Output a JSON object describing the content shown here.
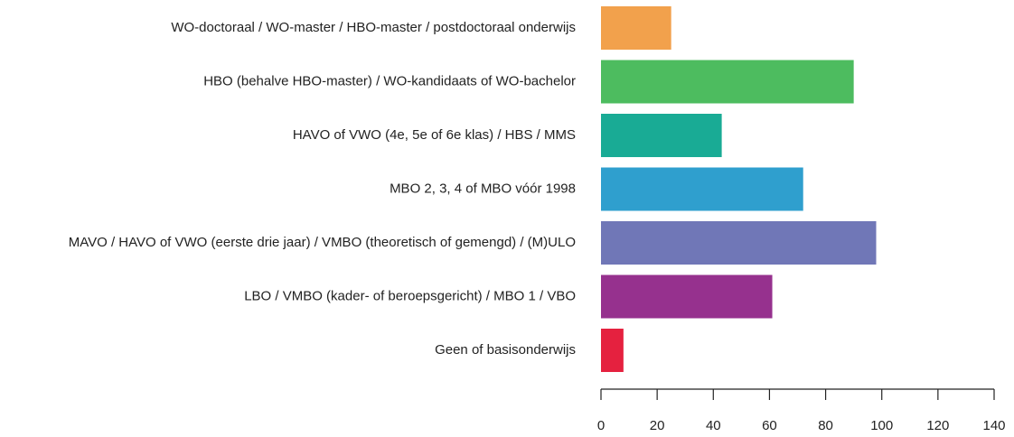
{
  "chart_data": {
    "type": "barh",
    "categories": [
      "WO-doctoraal / WO-master / HBO-master / postdoctoraal onderwijs",
      "HBO (behalve HBO-master) / WO-kandidaats of WO-bachelor",
      "HAVO of VWO (4e, 5e of 6e klas) / HBS / MMS",
      "MBO 2, 3, 4 of MBO vóór 1998",
      "MAVO / HAVO of VWO (eerste drie jaar) / VMBO (theoretisch of gemengd) / (M)ULO",
      "LBO / VMBO (kader- of beroepsgericht) / MBO 1 / VBO",
      "Geen of basisonderwijs"
    ],
    "values": [
      25,
      90,
      43,
      72,
      98,
      61,
      8
    ],
    "colors": [
      "#f2a14c",
      "#4dbc5f",
      "#19ab95",
      "#2f9fce",
      "#7077b7",
      "#96318e",
      "#e5213f"
    ],
    "xlim": [
      0,
      140
    ],
    "xticks": [
      0,
      20,
      40,
      60,
      80,
      100,
      120,
      140
    ]
  }
}
